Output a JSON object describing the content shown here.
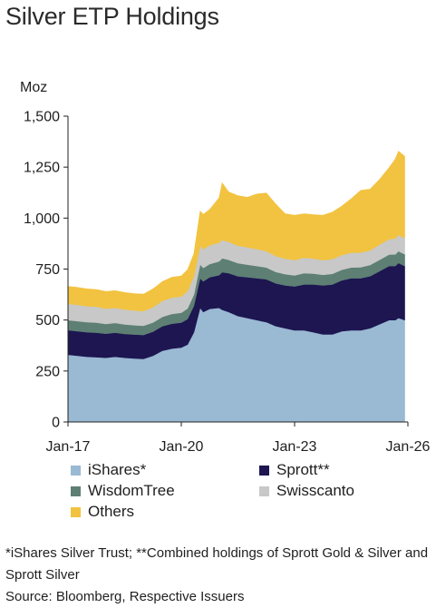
{
  "title": "Silver ETP Holdings",
  "footnote": "*iShares Silver Trust; **Combined holdings of Sprott Gold & Silver and Sprott Silver",
  "source": "Source: Bloomberg, Respective Issuers",
  "chart_data": {
    "type": "area",
    "stacked": true,
    "title": "Silver ETP Holdings",
    "unit_label": "Moz",
    "xlabel": "",
    "ylabel": "",
    "ylim": [
      0,
      1500
    ],
    "yticks": [
      0,
      250,
      500,
      750,
      1000,
      1250,
      1500
    ],
    "ytick_labels": [
      "0",
      "250",
      "500",
      "750",
      "1,000",
      "1,250",
      "1,500"
    ],
    "xlim": [
      "2017-01",
      "2026-01"
    ],
    "xticks": [
      "Jan-17",
      "Jan-20",
      "Jan-23",
      "Jan-26"
    ],
    "grid": false,
    "legend_position": "bottom",
    "x": [
      "2017-01",
      "2017-04",
      "2017-07",
      "2017-10",
      "2018-01",
      "2018-04",
      "2018-07",
      "2018-10",
      "2019-01",
      "2019-04",
      "2019-07",
      "2019-10",
      "2020-01",
      "2020-03",
      "2020-05",
      "2020-07",
      "2020-08",
      "2020-10",
      "2021-01",
      "2021-02",
      "2021-04",
      "2021-07",
      "2021-10",
      "2022-01",
      "2022-04",
      "2022-07",
      "2022-10",
      "2023-01",
      "2023-04",
      "2023-07",
      "2023-10",
      "2024-01",
      "2024-04",
      "2024-07",
      "2024-10",
      "2025-01",
      "2025-04",
      "2025-07",
      "2025-09",
      "2025-10",
      "2025-12"
    ],
    "series": [
      {
        "name": "iShares*",
        "color": "#9ab9d3",
        "values": [
          330,
          325,
          320,
          318,
          315,
          320,
          315,
          312,
          310,
          325,
          350,
          360,
          365,
          380,
          440,
          560,
          540,
          555,
          560,
          550,
          540,
          520,
          510,
          500,
          490,
          470,
          460,
          450,
          450,
          440,
          430,
          430,
          445,
          450,
          450,
          460,
          480,
          500,
          500,
          510,
          500
        ]
      },
      {
        "name": "Sprott**",
        "color": "#1d1651",
        "values": [
          120,
          120,
          120,
          120,
          118,
          118,
          117,
          117,
          117,
          118,
          120,
          122,
          123,
          125,
          130,
          145,
          150,
          155,
          160,
          185,
          190,
          195,
          200,
          205,
          210,
          210,
          210,
          215,
          225,
          235,
          240,
          245,
          250,
          255,
          255,
          255,
          260,
          265,
          265,
          270,
          265
        ]
      },
      {
        "name": "WisdomTree",
        "color": "#5e7f74",
        "values": [
          50,
          50,
          50,
          50,
          48,
          48,
          47,
          46,
          45,
          45,
          46,
          48,
          48,
          52,
          55,
          68,
          66,
          65,
          68,
          68,
          66,
          64,
          62,
          60,
          58,
          56,
          55,
          54,
          55,
          53,
          52,
          52,
          52,
          53,
          54,
          55,
          56,
          56,
          57,
          58,
          58
        ]
      },
      {
        "name": "Swisscanto",
        "color": "#c8c8c8",
        "values": [
          80,
          80,
          78,
          78,
          75,
          74,
          73,
          72,
          72,
          75,
          78,
          80,
          80,
          85,
          90,
          92,
          92,
          92,
          92,
          90,
          88,
          86,
          85,
          83,
          80,
          78,
          76,
          75,
          76,
          74,
          72,
          72,
          72,
          72,
          72,
          72,
          74,
          76,
          78,
          80,
          80
        ]
      },
      {
        "name": "Others",
        "color": "#f2c340",
        "values": [
          85,
          85,
          85,
          84,
          84,
          84,
          83,
          83,
          83,
          90,
          95,
          100,
          100,
          105,
          110,
          170,
          170,
          175,
          220,
          280,
          245,
          245,
          245,
          270,
          285,
          255,
          220,
          220,
          215,
          215,
          220,
          230,
          240,
          265,
          305,
          300,
          320,
          350,
          390,
          410,
          400
        ]
      }
    ]
  }
}
